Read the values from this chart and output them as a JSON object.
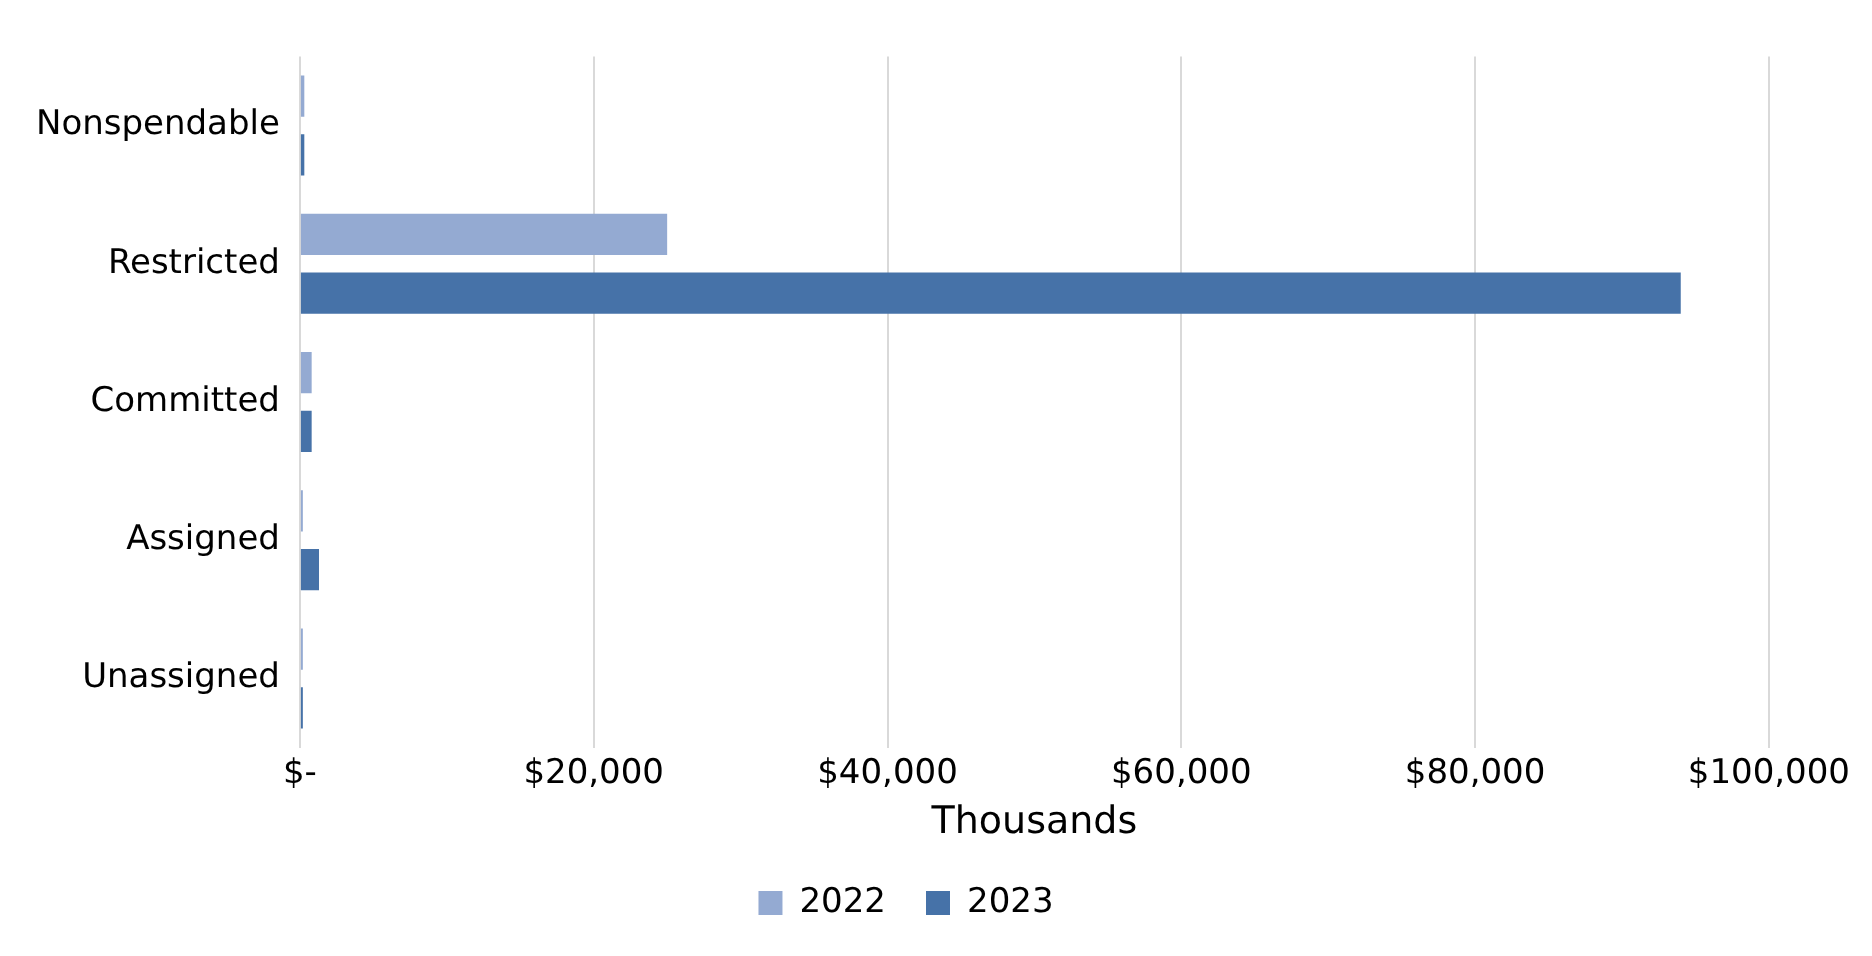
{
  "chart_data": {
    "type": "bar",
    "orientation": "horizontal",
    "categories": [
      "Nonspendable",
      "Restricted",
      "Committed",
      "Assigned",
      "Unassigned"
    ],
    "series": [
      {
        "name": "2022",
        "color": "#94aad2",
        "values": [
          300,
          25000,
          800,
          200,
          200
        ]
      },
      {
        "name": "2023",
        "color": "#4672a8",
        "values": [
          300,
          94000,
          800,
          1300,
          200
        ]
      }
    ],
    "xlabel": "Thousands",
    "xlim": [
      0,
      100000
    ],
    "xticks": [
      {
        "value": 0,
        "label": "$-"
      },
      {
        "value": 20000,
        "label": "$20,000"
      },
      {
        "value": 40000,
        "label": "$40,000"
      },
      {
        "value": 60000,
        "label": "$60,000"
      },
      {
        "value": 80000,
        "label": "$80,000"
      },
      {
        "value": 100000,
        "label": "$100,000"
      }
    ],
    "grid": "x",
    "legend": "bottom"
  }
}
